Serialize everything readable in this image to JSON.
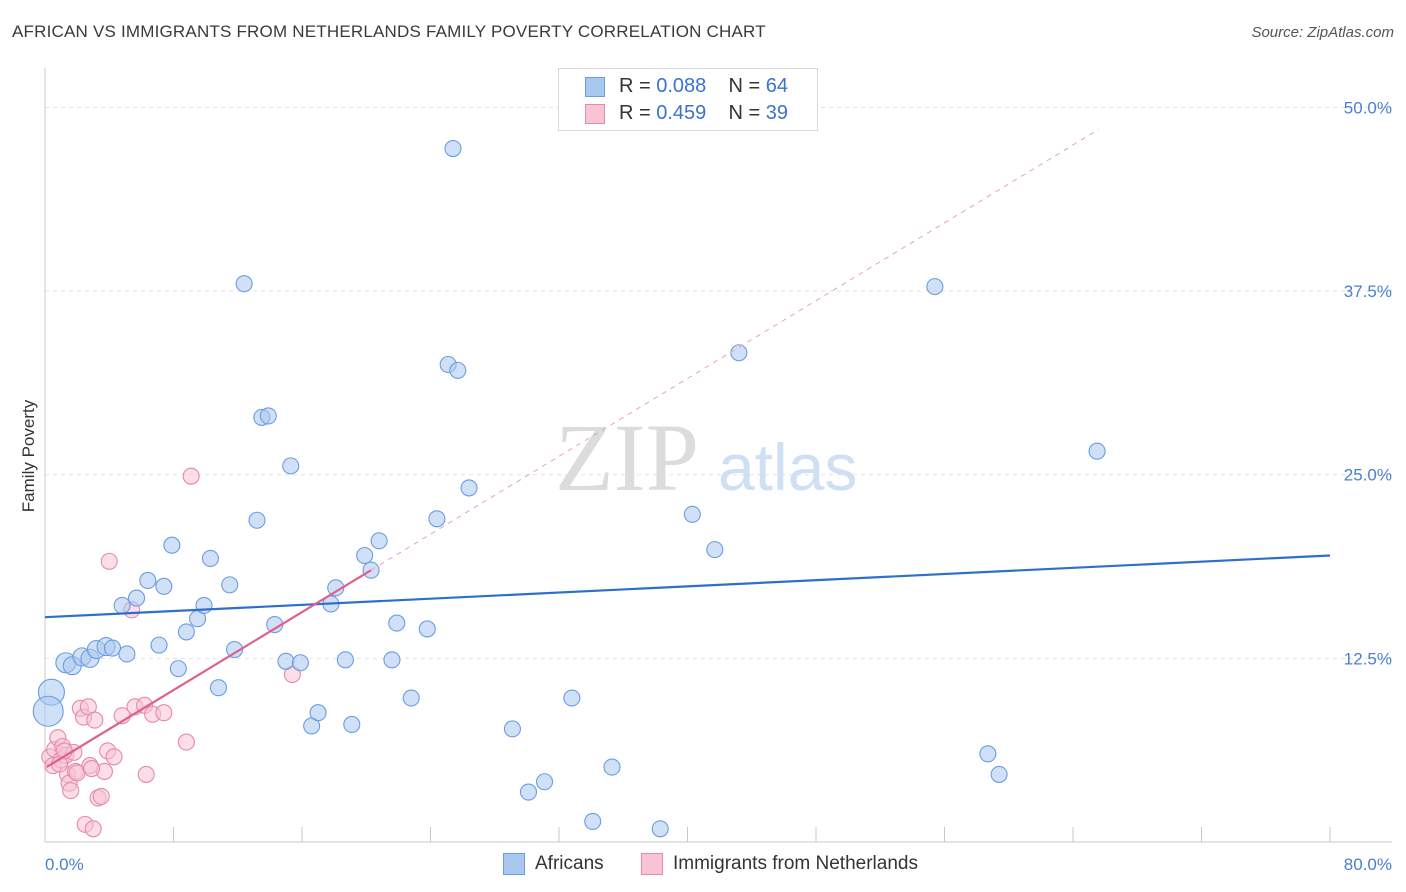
{
  "title": "AFRICAN VS IMMIGRANTS FROM NETHERLANDS FAMILY POVERTY CORRELATION CHART",
  "source": "Source: ZipAtlas.com",
  "watermark": {
    "zip": "ZIP",
    "atlas": "atlas"
  },
  "legend": {
    "rows": [
      {
        "r_label": "R = ",
        "r_value": "0.088",
        "n_label": "N = ",
        "n_value": "64",
        "color": "#a9c8f0",
        "border": "#6a9de0"
      },
      {
        "r_label": "R = ",
        "r_value": "0.459",
        "n_label": "N = ",
        "n_value": "39",
        "color": "#f8c3d3",
        "border": "#e58aa8"
      }
    ]
  },
  "bottom_legend": [
    {
      "label": "Africans",
      "color": "#a9c8f0",
      "border": "#6a9de0"
    },
    {
      "label": "Immigrants from Netherlands",
      "color": "#f8c3d3",
      "border": "#e58aa8"
    }
  ],
  "chart_data": {
    "type": "scatter",
    "title": "AFRICAN VS IMMIGRANTS FROM NETHERLANDS FAMILY POVERTY CORRELATION CHART",
    "xlabel": "",
    "ylabel": "Family Poverty",
    "xlim": [
      0,
      80
    ],
    "ylim": [
      0,
      52
    ],
    "x_tick_labels": [
      "0.0%",
      "80.0%"
    ],
    "y_ticks": [
      12.5,
      25.0,
      37.5,
      50.0
    ],
    "y_tick_labels": [
      "12.5%",
      "25.0%",
      "37.5%",
      "50.0%"
    ],
    "grid": true,
    "series": [
      {
        "name": "Africans",
        "color": "#6a9de0",
        "fill": "#a9c8f0",
        "R": 0.088,
        "N": 64,
        "trend": {
          "x": [
            0,
            80
          ],
          "y": [
            15.3,
            19.5
          ],
          "color": "#2f6fcc"
        },
        "points": [
          [
            0.4,
            10.2,
            13
          ],
          [
            0.2,
            8.9,
            15
          ],
          [
            1.3,
            12.2,
            10
          ],
          [
            1.7,
            12.0,
            9
          ],
          [
            2.3,
            12.6,
            9
          ],
          [
            2.8,
            12.5,
            9
          ],
          [
            3.2,
            13.1,
            9
          ],
          [
            3.8,
            13.3,
            9
          ],
          [
            4.2,
            13.2,
            8
          ],
          [
            5.1,
            12.8,
            8
          ],
          [
            4.8,
            16.1,
            8
          ],
          [
            5.7,
            16.6,
            8
          ],
          [
            6.4,
            17.8,
            8
          ],
          [
            7.1,
            13.4,
            8
          ],
          [
            7.4,
            17.4,
            8
          ],
          [
            7.9,
            20.2,
            8
          ],
          [
            8.3,
            11.8,
            8
          ],
          [
            8.8,
            14.3,
            8
          ],
          [
            9.5,
            15.2,
            8
          ],
          [
            9.9,
            16.1,
            8
          ],
          [
            10.3,
            19.3,
            8
          ],
          [
            10.8,
            10.5,
            8
          ],
          [
            11.5,
            17.5,
            8
          ],
          [
            11.8,
            13.1,
            8
          ],
          [
            12.4,
            38.0,
            8
          ],
          [
            13.2,
            21.9,
            8
          ],
          [
            13.5,
            28.9,
            8
          ],
          [
            13.9,
            29.0,
            8
          ],
          [
            14.3,
            14.8,
            8
          ],
          [
            15.0,
            12.3,
            8
          ],
          [
            15.3,
            25.6,
            8
          ],
          [
            15.9,
            12.2,
            8
          ],
          [
            16.6,
            7.9,
            8
          ],
          [
            17.0,
            8.8,
            8
          ],
          [
            17.8,
            16.2,
            8
          ],
          [
            18.1,
            17.3,
            8
          ],
          [
            18.7,
            12.4,
            8
          ],
          [
            19.1,
            8.0,
            8
          ],
          [
            19.9,
            19.5,
            8
          ],
          [
            20.3,
            18.5,
            8
          ],
          [
            20.8,
            20.5,
            8
          ],
          [
            21.6,
            12.4,
            8
          ],
          [
            21.9,
            14.9,
            8
          ],
          [
            22.8,
            9.8,
            8
          ],
          [
            23.8,
            14.5,
            8
          ],
          [
            24.4,
            22.0,
            8
          ],
          [
            25.1,
            32.5,
            8
          ],
          [
            25.4,
            47.2,
            8
          ],
          [
            25.7,
            32.1,
            8
          ],
          [
            26.4,
            24.1,
            8
          ],
          [
            29.1,
            7.7,
            8
          ],
          [
            30.1,
            3.4,
            8
          ],
          [
            31.1,
            4.1,
            8
          ],
          [
            32.8,
            9.8,
            8
          ],
          [
            34.1,
            1.4,
            8
          ],
          [
            35.3,
            5.1,
            8
          ],
          [
            38.3,
            0.9,
            8
          ],
          [
            40.3,
            22.3,
            8
          ],
          [
            41.7,
            19.9,
            8
          ],
          [
            43.2,
            33.3,
            8
          ],
          [
            55.4,
            37.8,
            8
          ],
          [
            58.7,
            6.0,
            8
          ],
          [
            59.4,
            4.6,
            8
          ],
          [
            65.5,
            26.6,
            8
          ]
        ]
      },
      {
        "name": "Immigrants from Netherlands",
        "color": "#e58aa8",
        "fill": "#f8c3d3",
        "R": 0.459,
        "N": 39,
        "trend": {
          "x": [
            0.1,
            20.3
          ],
          "y": [
            5.1,
            18.5
          ],
          "color": "#e0608a",
          "extended": {
            "x": [
              20.3,
              65.6
            ],
            "y": [
              18.5,
              48.5
            ]
          }
        },
        "points": [
          [
            0.3,
            5.8,
            8
          ],
          [
            0.5,
            5.2,
            8
          ],
          [
            0.6,
            6.3,
            8
          ],
          [
            0.8,
            7.1,
            8
          ],
          [
            1.0,
            5.6,
            8
          ],
          [
            1.1,
            6.5,
            8
          ],
          [
            1.3,
            5.9,
            8
          ],
          [
            1.4,
            4.6,
            8
          ],
          [
            1.5,
            4.0,
            8
          ],
          [
            1.6,
            3.5,
            8
          ],
          [
            1.8,
            6.1,
            8
          ],
          [
            1.9,
            4.8,
            8
          ],
          [
            2.0,
            4.7,
            8
          ],
          [
            2.2,
            9.1,
            8
          ],
          [
            2.4,
            8.5,
            8
          ],
          [
            2.5,
            1.2,
            8
          ],
          [
            2.7,
            9.2,
            8
          ],
          [
            2.8,
            5.2,
            8
          ],
          [
            3.0,
            0.9,
            8
          ],
          [
            3.1,
            8.3,
            8
          ],
          [
            3.3,
            3.0,
            8
          ],
          [
            3.5,
            3.1,
            8
          ],
          [
            3.7,
            4.8,
            8
          ],
          [
            3.9,
            6.2,
            8
          ],
          [
            4.0,
            19.1,
            8
          ],
          [
            4.3,
            5.8,
            8
          ],
          [
            4.8,
            8.6,
            8
          ],
          [
            5.4,
            15.8,
            8
          ],
          [
            5.6,
            9.2,
            8
          ],
          [
            6.2,
            9.3,
            8
          ],
          [
            6.3,
            4.6,
            8
          ],
          [
            6.7,
            8.7,
            8
          ],
          [
            7.4,
            8.8,
            8
          ],
          [
            8.8,
            6.8,
            8
          ],
          [
            9.1,
            24.9,
            8
          ],
          [
            15.4,
            11.4,
            8
          ],
          [
            2.9,
            5.0,
            8
          ],
          [
            1.2,
            6.2,
            8
          ],
          [
            0.9,
            5.3,
            8
          ]
        ]
      }
    ]
  }
}
